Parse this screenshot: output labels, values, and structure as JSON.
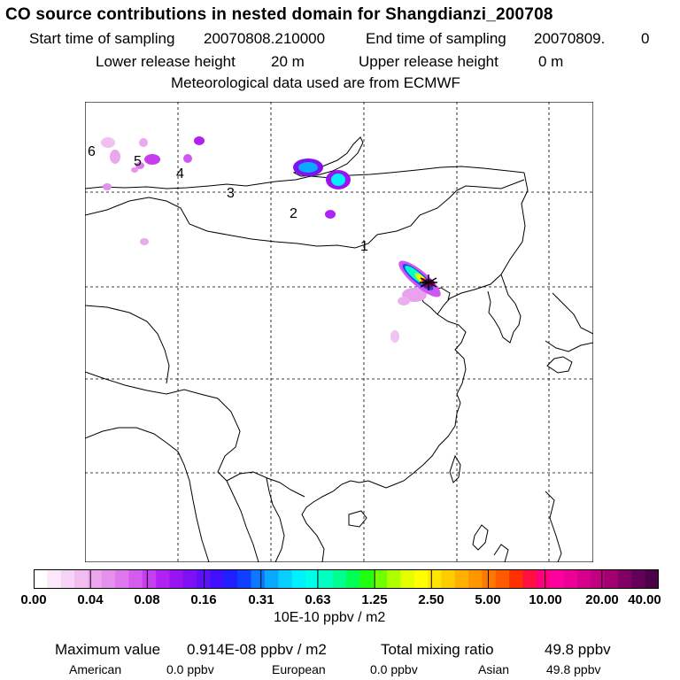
{
  "header": {
    "title": "CO  source contributions in nested domain for Shangdianzi_200708",
    "start_label": "Start time of sampling",
    "start_value": "20070808.210000",
    "end_label": "End time of sampling",
    "end_value": "20070809.",
    "end_suffix": "0",
    "lower_label": "Lower release height",
    "lower_value": "20 m",
    "upper_label": "Upper release height",
    "upper_value": "0 m",
    "met_line": "Meteorological data used are from ECMWF"
  },
  "map": {
    "track_labels": [
      "1",
      "2",
      "3",
      "4",
      "5",
      "6"
    ],
    "receptor_marker": "star-icon"
  },
  "colorbar": {
    "colors": [
      "#ffffff",
      "#fbe8fb",
      "#f6d2f6",
      "#f1bdf1",
      "#eca6ee",
      "#e690ee",
      "#df78ee",
      "#d55bee",
      "#c63ef0",
      "#b022f2",
      "#9a14f2",
      "#7e10f6",
      "#5f10fa",
      "#3f10fd",
      "#2020ff",
      "#1040ff",
      "#0c78ff",
      "#0aa8ff",
      "#08cfff",
      "#00f0ff",
      "#00ffe8",
      "#00ffc0",
      "#00ff90",
      "#00ff50",
      "#20ff10",
      "#70ff00",
      "#b0ff00",
      "#e6ff00",
      "#ffff00",
      "#ffe600",
      "#ffcc00",
      "#ffb000",
      "#ff9600",
      "#ff7800",
      "#ff5a00",
      "#ff3000",
      "#ff1040",
      "#ff0080",
      "#ff00a0",
      "#ec0096",
      "#d6008c",
      "#c00080",
      "#a00070",
      "#800066",
      "#640058",
      "#4c0048"
    ],
    "tick_labels": [
      "0.00",
      "0.04",
      "0.08",
      "0.16",
      "0.31",
      "0.63",
      "1.25",
      "2.50",
      "5.00",
      "10.00",
      "20.00",
      "40.00"
    ],
    "units": "10E-10 ppbv / m2"
  },
  "stats": {
    "max_label": "Maximum value",
    "max_value": "0.914E-08 ppbv / m2",
    "total_label": "Total mixing ratio",
    "total_value": "49.8 ppbv",
    "regions": [
      {
        "name": "American",
        "value": "0.0 ppbv"
      },
      {
        "name": "European",
        "value": "0.0 ppbv"
      },
      {
        "name": "Asian",
        "value": "49.8 ppbv"
      }
    ]
  }
}
